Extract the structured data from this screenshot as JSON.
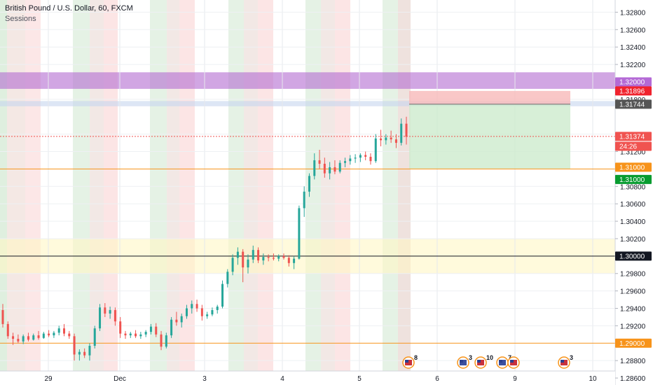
{
  "legend": {
    "title": "British Pound / U.S. Dollar, 60, FXCM",
    "indicator": "Sessions"
  },
  "chart_data": {
    "type": "candlestick",
    "symbol": "GBPUSD",
    "timeframe": "60",
    "yrange": [
      1.2852,
      1.3294
    ],
    "y_ticks": [
      "1.32800",
      "1.32600",
      "1.32400",
      "1.32200",
      "1.31800",
      "1.31400",
      "1.31200",
      "1.30800",
      "1.30600",
      "1.30400",
      "1.30200",
      "1.29800",
      "1.29600",
      "1.29400",
      "1.29200",
      "1.28800",
      "1.28600"
    ],
    "x_ticks": [
      "29",
      "Dec",
      "3",
      "4",
      "5",
      "6",
      "9",
      "10"
    ],
    "candles": [
      [
        1.2938,
        1.2945,
        1.2918,
        1.2922
      ],
      [
        1.2922,
        1.2925,
        1.2905,
        1.2908
      ],
      [
        1.2908,
        1.2912,
        1.2898,
        1.2905
      ],
      [
        1.2905,
        1.291,
        1.29,
        1.2902
      ],
      [
        1.2902,
        1.291,
        1.2899,
        1.2908
      ],
      [
        1.2908,
        1.2912,
        1.2902,
        1.2904
      ],
      [
        1.2904,
        1.2911,
        1.2903,
        1.2909
      ],
      [
        1.2909,
        1.2914,
        1.2904,
        1.2906
      ],
      [
        1.2906,
        1.2913,
        1.2905,
        1.2911
      ],
      [
        1.2911,
        1.2915,
        1.2907,
        1.2909
      ],
      [
        1.2909,
        1.2914,
        1.2906,
        1.2912
      ],
      [
        1.2912,
        1.292,
        1.2909,
        1.2917
      ],
      [
        1.2917,
        1.2922,
        1.2908,
        1.2911
      ],
      [
        1.2911,
        1.2914,
        1.2905,
        1.2908
      ],
      [
        1.2908,
        1.2911,
        1.288,
        1.2887
      ],
      [
        1.2887,
        1.2893,
        1.288,
        1.289
      ],
      [
        1.289,
        1.2894,
        1.2883,
        1.2886
      ],
      [
        1.2886,
        1.29,
        1.288,
        1.2897
      ],
      [
        1.2897,
        1.292,
        1.2894,
        1.2917
      ],
      [
        1.2917,
        1.2945,
        1.2914,
        1.2941
      ],
      [
        1.2941,
        1.2946,
        1.293,
        1.2934
      ],
      [
        1.2934,
        1.2942,
        1.2928,
        1.2938
      ],
      [
        1.2938,
        1.2941,
        1.292,
        1.2925
      ],
      [
        1.2925,
        1.293,
        1.2906,
        1.2911
      ],
      [
        1.2911,
        1.2914,
        1.2905,
        1.2909
      ],
      [
        1.2909,
        1.2913,
        1.2906,
        1.2911
      ],
      [
        1.2911,
        1.2915,
        1.2906,
        1.2908
      ],
      [
        1.2908,
        1.2913,
        1.2905,
        1.291
      ],
      [
        1.291,
        1.2915,
        1.2907,
        1.2913
      ],
      [
        1.2913,
        1.2922,
        1.291,
        1.2919
      ],
      [
        1.2919,
        1.2923,
        1.2907,
        1.291
      ],
      [
        1.291,
        1.2914,
        1.2892,
        1.2896
      ],
      [
        1.2896,
        1.2912,
        1.2894,
        1.2909
      ],
      [
        1.2909,
        1.293,
        1.2906,
        1.2927
      ],
      [
        1.2927,
        1.2936,
        1.292,
        1.2924
      ],
      [
        1.2924,
        1.2934,
        1.2918,
        1.2931
      ],
      [
        1.2931,
        1.2944,
        1.2928,
        1.294
      ],
      [
        1.294,
        1.2949,
        1.2934,
        1.2945
      ],
      [
        1.2945,
        1.295,
        1.2936,
        1.294
      ],
      [
        1.294,
        1.2944,
        1.2926,
        1.2931
      ],
      [
        1.2931,
        1.2936,
        1.2928,
        1.2933
      ],
      [
        1.2933,
        1.2941,
        1.2931,
        1.2938
      ],
      [
        1.2938,
        1.2944,
        1.2934,
        1.2942
      ],
      [
        1.2942,
        1.2972,
        1.294,
        1.2968
      ],
      [
        1.2968,
        1.2985,
        1.2964,
        1.2982
      ],
      [
        1.2982,
        1.3002,
        1.2978,
        1.2998
      ],
      [
        1.2998,
        1.301,
        1.299,
        1.3005
      ],
      [
        1.3005,
        1.3008,
        1.297,
        1.2987
      ],
      [
        1.2987,
        1.3002,
        1.298,
        1.2996
      ],
      [
        1.2996,
        1.3012,
        1.2992,
        1.3007
      ],
      [
        1.3007,
        1.301,
        1.2992,
        1.2995
      ],
      [
        1.2995,
        1.3003,
        1.299,
        1.2999
      ],
      [
        1.2999,
        1.3002,
        1.2994,
        1.2998
      ],
      [
        1.2998,
        1.3003,
        1.2995,
        1.2997
      ],
      [
        1.2997,
        1.3002,
        1.2994,
        1.3
      ],
      [
        1.3,
        1.3003,
        1.2996,
        1.2998
      ],
      [
        1.2998,
        1.3001,
        1.2988,
        1.2992
      ],
      [
        1.2992,
        1.3,
        1.2985,
        1.2997
      ],
      [
        1.2997,
        1.3058,
        1.2996,
        1.3055
      ],
      [
        1.3055,
        1.308,
        1.3045,
        1.3074
      ],
      [
        1.3074,
        1.3095,
        1.3068,
        1.3092
      ],
      [
        1.3092,
        1.3118,
        1.3088,
        1.311
      ],
      [
        1.311,
        1.3122,
        1.31,
        1.3106
      ],
      [
        1.3106,
        1.3113,
        1.309,
        1.3095
      ],
      [
        1.3095,
        1.3108,
        1.3088,
        1.3102
      ],
      [
        1.3102,
        1.311,
        1.3094,
        1.3097
      ],
      [
        1.3097,
        1.311,
        1.3095,
        1.3107
      ],
      [
        1.3107,
        1.3113,
        1.3102,
        1.3109
      ],
      [
        1.3109,
        1.3116,
        1.3105,
        1.3112
      ],
      [
        1.3112,
        1.3117,
        1.3107,
        1.3113
      ],
      [
        1.3113,
        1.3118,
        1.3108,
        1.3116
      ],
      [
        1.3116,
        1.312,
        1.311,
        1.3114
      ],
      [
        1.3114,
        1.3118,
        1.3105,
        1.3109
      ],
      [
        1.3109,
        1.314,
        1.3107,
        1.3135
      ],
      [
        1.3135,
        1.3145,
        1.3126,
        1.3133
      ],
      [
        1.3133,
        1.314,
        1.3128,
        1.3136
      ],
      [
        1.3136,
        1.3144,
        1.313,
        1.3134
      ],
      [
        1.3134,
        1.314,
        1.3124,
        1.313
      ],
      [
        1.313,
        1.3158,
        1.3127,
        1.3152
      ],
      [
        1.3152,
        1.316,
        1.3128,
        1.3137
      ]
    ],
    "horizontal_lines": [
      {
        "price": 1.31,
        "label": "1.31000",
        "color": "#f7931a"
      },
      {
        "price": 1.29,
        "label": "1.29000",
        "color": "#f7931a"
      },
      {
        "price": 1.3,
        "label": "1.30000",
        "color": "#131722"
      },
      {
        "price": 1.31374,
        "label": "1.31374",
        "color": "#f05350",
        "style": "dotted"
      }
    ],
    "zones": [
      {
        "from": 1.3192,
        "to": 1.3211,
        "color": "#b36ad0"
      },
      {
        "from": 1.3172,
        "to": 1.3178,
        "color": "#c7d6ee"
      },
      {
        "from": 1.298,
        "to": 1.302,
        "color": "#fff6c4"
      }
    ],
    "position": {
      "entry": 1.31744,
      "stop": 1.31896,
      "target": 1.31
    },
    "price_labels": [
      {
        "text": "1.32000",
        "bg": "#b46ad6",
        "color": "#ffffff",
        "price": 1.32
      },
      {
        "text": "1.31896",
        "bg": "#f0232e",
        "color": "#ffffff",
        "price": 1.31896
      },
      {
        "text": "1.31744",
        "bg": "#555555",
        "color": "#ffffff",
        "price": 1.31744
      },
      {
        "text": "1.31374",
        "bg": "#f05350",
        "color": "#ffffff",
        "price": 1.31374
      },
      {
        "text": "24:26",
        "bg": "#f05350",
        "color": "#ffffff",
        "price": 1.3126
      },
      {
        "text": "1.31000",
        "bg": "#f7931a",
        "color": "#ffffff",
        "price": 1.3102
      },
      {
        "text": "1.31000",
        "bg": "#089c30",
        "color": "#ffffff",
        "price": 1.3088
      },
      {
        "text": "1.30000",
        "bg": "#131722",
        "color": "#ffffff",
        "price": 1.3
      },
      {
        "text": "1.29000",
        "bg": "#f7931a",
        "color": "#ffffff",
        "price": 1.29
      }
    ],
    "session_bands": "alternating green / red / dark sessions",
    "events": [
      {
        "flag": "us",
        "count": "8"
      },
      {
        "flag": "uk",
        "count": "3"
      },
      {
        "flag": "us",
        "count": "10"
      },
      {
        "flag": "uk",
        "count": "7"
      },
      {
        "flag": "us",
        "count": ""
      },
      {
        "flag": "us",
        "count": "3"
      }
    ]
  }
}
